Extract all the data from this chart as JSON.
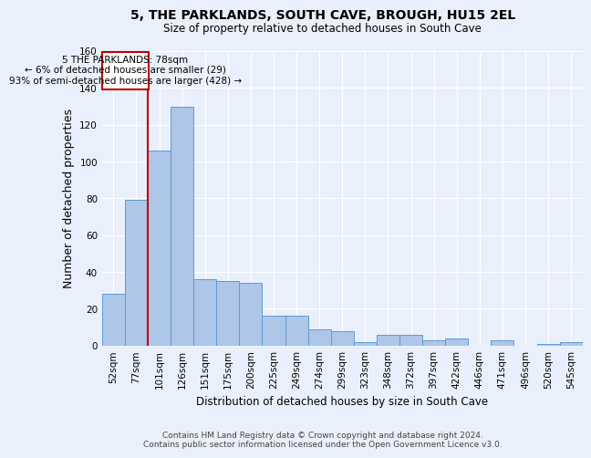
{
  "title": "5, THE PARKLANDS, SOUTH CAVE, BROUGH, HU15 2EL",
  "subtitle": "Size of property relative to detached houses in South Cave",
  "xlabel": "Distribution of detached houses by size in South Cave",
  "ylabel": "Number of detached properties",
  "categories": [
    "52sqm",
    "77sqm",
    "101sqm",
    "126sqm",
    "151sqm",
    "175sqm",
    "200sqm",
    "225sqm",
    "249sqm",
    "274sqm",
    "299sqm",
    "323sqm",
    "348sqm",
    "372sqm",
    "397sqm",
    "422sqm",
    "446sqm",
    "471sqm",
    "496sqm",
    "520sqm",
    "545sqm"
  ],
  "values": [
    28,
    79,
    106,
    130,
    36,
    35,
    34,
    16,
    16,
    9,
    8,
    2,
    6,
    6,
    3,
    4,
    0,
    3,
    0,
    1,
    2
  ],
  "bar_color": "#aec6e8",
  "bar_edge_color": "#5b9bd5",
  "property_label": "5 THE PARKLANDS: 78sqm",
  "annotation_line1": "← 6% of detached houses are smaller (29)",
  "annotation_line2": "93% of semi-detached houses are larger (428) →",
  "vline_color": "#c00000",
  "vline_x_index": 1.5,
  "ylim": [
    0,
    160
  ],
  "yticks": [
    0,
    20,
    40,
    60,
    80,
    100,
    120,
    140,
    160
  ],
  "box_color": "#c00000",
  "background_color": "#eaf0fb",
  "grid_color": "#ffffff",
  "footer_line1": "Contains HM Land Registry data © Crown copyright and database right 2024.",
  "footer_line2": "Contains public sector information licensed under the Open Government Licence v3.0."
}
